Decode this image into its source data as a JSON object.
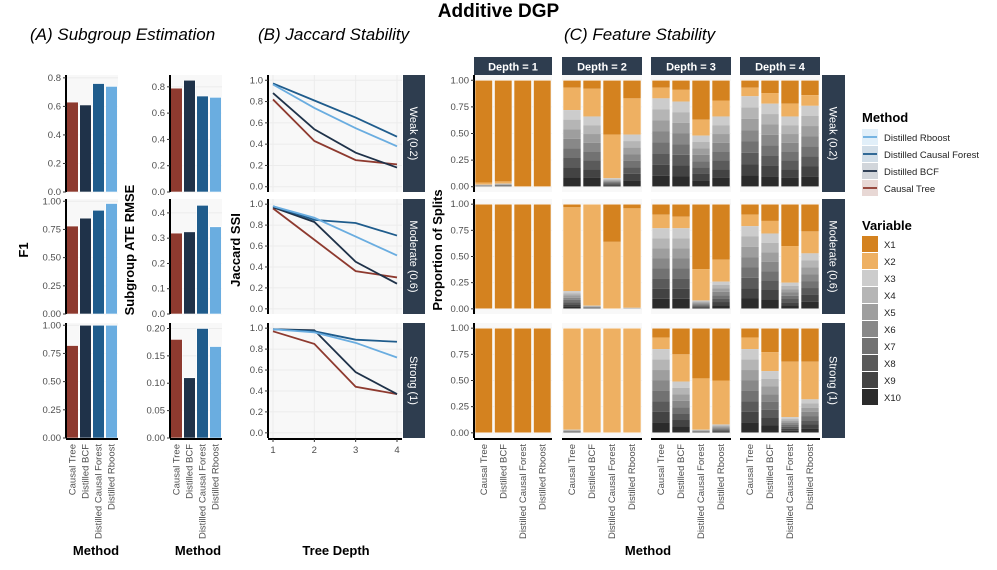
{
  "title": "Additive DGP",
  "subtitles": {
    "a": "(A) Subgroup Estimation",
    "b": "(B) Jaccard Stability",
    "c": "(C) Feature Stability"
  },
  "colors": {
    "Causal Tree": "#8e3a2f",
    "Distilled BCF": "#1f3249",
    "Distilled Causal Forest": "#1f5c8c",
    "Distilled Rboost": "#6aade0",
    "strip": "#2e3d4f",
    "panel_bg": "#f8f8f8",
    "variables": [
      "#d4821f",
      "#eeb062",
      "#cccccc",
      "#b5b5b5",
      "#9e9e9e",
      "#888888",
      "#727272",
      "#5a5a5a",
      "#434343",
      "#2b2b2b"
    ]
  },
  "rows": [
    "Weak (0.2)",
    "Moderate (0.6)",
    "Strong (1)"
  ],
  "methods": [
    "Causal Tree",
    "Distilled BCF",
    "Distilled Causal Forest",
    "Distilled Rboost"
  ],
  "chart_data": [
    {
      "type": "bar",
      "id": "f1",
      "ylabel": "F1",
      "xlabel": "Method",
      "facets": [
        {
          "row": "Weak (0.2)",
          "ylim": [
            0,
            0.82
          ],
          "ticks": [
            "0.0",
            "0.2",
            "0.4",
            "0.6",
            "0.8"
          ],
          "tickvals": [
            0,
            0.2,
            0.4,
            0.6,
            0.8
          ],
          "values": [
            0.63,
            0.61,
            0.76,
            0.74
          ]
        },
        {
          "row": "Moderate (0.6)",
          "ylim": [
            0,
            1.02
          ],
          "ticks": [
            "0.00",
            "0.25",
            "0.50",
            "0.75",
            "1.00"
          ],
          "tickvals": [
            0,
            0.25,
            0.5,
            0.75,
            1
          ],
          "values": [
            0.78,
            0.85,
            0.92,
            0.98
          ]
        },
        {
          "row": "Strong (1)",
          "ylim": [
            0,
            1.02
          ],
          "ticks": [
            "0.00",
            "0.25",
            "0.50",
            "0.75",
            "1.00"
          ],
          "tickvals": [
            0,
            0.25,
            0.5,
            0.75,
            1
          ],
          "values": [
            0.82,
            1.0,
            1.0,
            1.0
          ]
        }
      ]
    },
    {
      "type": "bar",
      "id": "rmse",
      "ylabel": "Subgroup ATE RMSE",
      "xlabel": "Method",
      "facets": [
        {
          "row": "Weak (0.2)",
          "ylim": [
            0,
            0.89
          ],
          "ticks": [
            "0.0",
            "0.2",
            "0.4",
            "0.6",
            "0.8"
          ],
          "tickvals": [
            0,
            0.2,
            0.4,
            0.6,
            0.8
          ],
          "values": [
            0.79,
            0.85,
            0.73,
            0.72
          ]
        },
        {
          "row": "Moderate (0.6)",
          "ylim": [
            0,
            0.455
          ],
          "ticks": [
            "0.0",
            "0.1",
            "0.2",
            "0.3",
            "0.4"
          ],
          "tickvals": [
            0,
            0.1,
            0.2,
            0.3,
            0.4
          ],
          "values": [
            0.32,
            0.325,
            0.43,
            0.345
          ]
        },
        {
          "row": "Strong (1)",
          "ylim": [
            0,
            0.21
          ],
          "ticks": [
            "0.00",
            "0.05",
            "0.10",
            "0.15",
            "0.20"
          ],
          "tickvals": [
            0,
            0.05,
            0.1,
            0.15,
            0.2
          ],
          "values": [
            0.18,
            0.11,
            0.2,
            0.167
          ]
        }
      ]
    },
    {
      "type": "line",
      "id": "jaccard",
      "ylabel": "Jaccard SSI",
      "xlabel": "Tree Depth",
      "x": [
        1,
        2,
        3,
        4
      ],
      "xticks": [
        "1",
        "2",
        "3",
        "4"
      ],
      "ylim": [
        0,
        1
      ],
      "yticks": [
        "0.0",
        "0.2",
        "0.4",
        "0.6",
        "0.8",
        "1.0"
      ],
      "ytickvals": [
        0,
        0.2,
        0.4,
        0.6,
        0.8,
        1
      ],
      "facets": [
        {
          "row": "Weak (0.2)",
          "series": [
            {
              "name": "Causal Tree",
              "values": [
                0.82,
                0.43,
                0.25,
                0.21
              ]
            },
            {
              "name": "Distilled BCF",
              "values": [
                0.88,
                0.54,
                0.32,
                0.18
              ]
            },
            {
              "name": "Distilled Causal Forest",
              "values": [
                0.97,
                0.81,
                0.65,
                0.47
              ]
            },
            {
              "name": "Distilled Rboost",
              "values": [
                0.96,
                0.74,
                0.55,
                0.38
              ]
            }
          ]
        },
        {
          "row": "Moderate (0.6)",
          "series": [
            {
              "name": "Causal Tree",
              "values": [
                0.96,
                0.66,
                0.36,
                0.3
              ]
            },
            {
              "name": "Distilled BCF",
              "values": [
                0.97,
                0.83,
                0.45,
                0.24
              ]
            },
            {
              "name": "Distilled Causal Forest",
              "values": [
                0.98,
                0.85,
                0.82,
                0.7
              ]
            },
            {
              "name": "Distilled Rboost",
              "values": [
                0.98,
                0.87,
                0.69,
                0.51
              ]
            }
          ]
        },
        {
          "row": "Strong (1)",
          "series": [
            {
              "name": "Causal Tree",
              "values": [
                0.97,
                0.85,
                0.44,
                0.37
              ]
            },
            {
              "name": "Distilled BCF",
              "values": [
                0.99,
                0.98,
                0.58,
                0.37
              ]
            },
            {
              "name": "Distilled Causal Forest",
              "values": [
                0.99,
                0.97,
                0.89,
                0.87
              ]
            },
            {
              "name": "Distilled Rboost",
              "values": [
                0.99,
                0.96,
                0.86,
                0.72
              ]
            }
          ]
        }
      ]
    },
    {
      "type": "bar",
      "stacked": true,
      "id": "feature",
      "ylabel": "Proportion of Splits",
      "xlabel": "Method",
      "columns": [
        "Depth = 1",
        "Depth = 2",
        "Depth = 3",
        "Depth = 4"
      ],
      "yticks": [
        "0.00",
        "0.25",
        "0.50",
        "0.75",
        "1.00"
      ],
      "ytickvals": [
        0,
        0.25,
        0.5,
        0.75,
        1
      ],
      "note_values": "per bar: [X1, X2, X3..X10 combined (split evenly)]",
      "values": [
        [
          [
            [
              0.96,
              0.02,
              0.02
            ],
            [
              0.95,
              0.02,
              0.03
            ],
            [
              1,
              0,
              0
            ],
            [
              1,
              0,
              0
            ]
          ],
          [
            [
              0.07,
              0.21,
              0.72
            ],
            [
              0.08,
              0.26,
              0.66
            ],
            [
              0.51,
              0.41,
              0.08
            ],
            [
              0.17,
              0.34,
              0.49
            ]
          ],
          [
            [
              0.07,
              0.1,
              0.83
            ],
            [
              0.09,
              0.11,
              0.8
            ],
            [
              0.37,
              0.15,
              0.48
            ],
            [
              0.19,
              0.15,
              0.66
            ]
          ],
          [
            [
              0.07,
              0.08,
              0.85
            ],
            [
              0.12,
              0.1,
              0.78
            ],
            [
              0.22,
              0.12,
              0.66
            ],
            [
              0.14,
              0.1,
              0.76
            ]
          ]
        ],
        [
          [
            [
              1,
              0,
              0
            ],
            [
              1,
              0,
              0
            ],
            [
              1,
              0,
              0
            ],
            [
              1,
              0,
              0
            ]
          ],
          [
            [
              0.03,
              0.8,
              0.17
            ],
            [
              0,
              0.97,
              0.03
            ],
            [
              0.36,
              0.64,
              0
            ],
            [
              0.04,
              0.95,
              0.01
            ]
          ],
          [
            [
              0.1,
              0.13,
              0.77
            ],
            [
              0.12,
              0.11,
              0.77
            ],
            [
              0.62,
              0.3,
              0.08
            ],
            [
              0.53,
              0.21,
              0.26
            ]
          ],
          [
            [
              0.1,
              0.11,
              0.79
            ],
            [
              0.16,
              0.12,
              0.72
            ],
            [
              0.4,
              0.35,
              0.25
            ],
            [
              0.26,
              0.21,
              0.53
            ]
          ]
        ],
        [
          [
            [
              1,
              0,
              0
            ],
            [
              1,
              0,
              0
            ],
            [
              1,
              0,
              0
            ],
            [
              1,
              0,
              0
            ]
          ],
          [
            [
              0,
              0.97,
              0.03
            ],
            [
              0,
              1,
              0
            ],
            [
              0,
              1,
              0
            ],
            [
              0,
              1,
              0
            ]
          ],
          [
            [
              0.09,
              0.11,
              0.8
            ],
            [
              0.25,
              0.26,
              0.49
            ],
            [
              0.48,
              0.49,
              0.03
            ],
            [
              0.5,
              0.42,
              0.08
            ]
          ],
          [
            [
              0.09,
              0.11,
              0.8
            ],
            [
              0.23,
              0.18,
              0.59
            ],
            [
              0.32,
              0.53,
              0.15
            ],
            [
              0.32,
              0.36,
              0.32
            ]
          ]
        ]
      ]
    }
  ],
  "legend": {
    "method_title": "Method",
    "method_items": [
      "Distilled Rboost",
      "Distilled Causal Forest",
      "Distilled BCF",
      "Causal Tree"
    ],
    "variable_title": "Variable",
    "variable_items": [
      "X1",
      "X2",
      "X3",
      "X4",
      "X5",
      "X6",
      "X7",
      "X8",
      "X9",
      "X10"
    ]
  }
}
